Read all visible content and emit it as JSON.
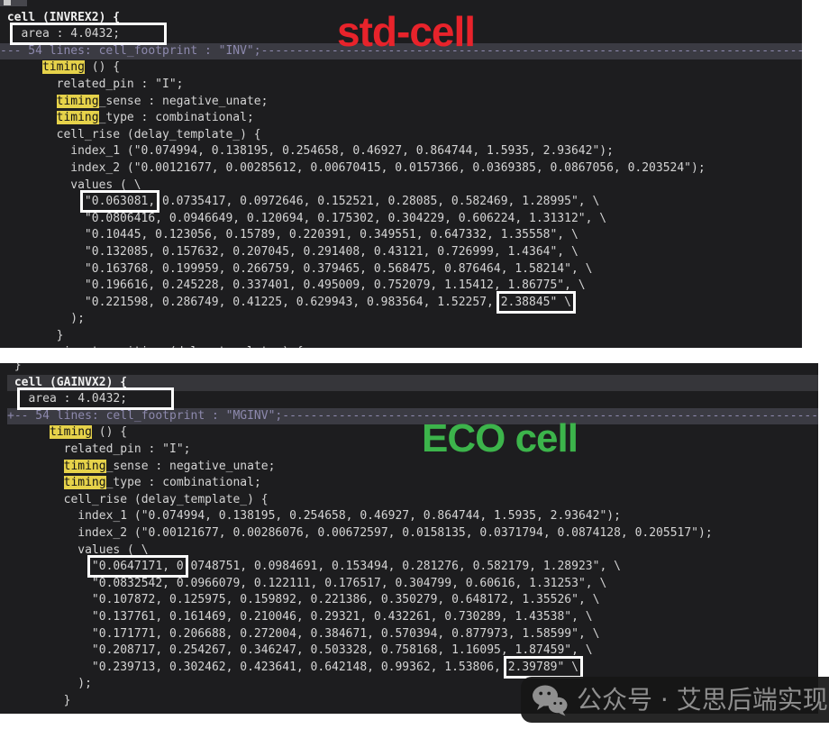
{
  "annotations": {
    "std_cell": {
      "label": "std-cell",
      "color": "#e8232b"
    },
    "eco_cell": {
      "label": "ECO cell",
      "color": "#3cb44b"
    }
  },
  "watermark": {
    "icon": "wechat-logo",
    "text": "公众号 · 艾思后端实现"
  },
  "panels": [
    {
      "name": "std-cell-liberty-view",
      "cell": "INVREX2",
      "lines": [
        {
          "segs": [
            [
              "p",
              " }"
            ]
          ]
        },
        {
          "segs": [
            [
              "b",
              " cell (INVREX2) {"
            ]
          ]
        },
        {
          "segs": [
            [
              "p",
              "  "
            ],
            [
              "x",
              " area : 4.0432;      "
            ]
          ]
        },
        {
          "hl": "fold",
          "segs": [
            [
              "p",
              "--- 54 lines: cell_footprint : \"INV\";----------------------------------------------------------------------------------------"
            ]
          ]
        },
        {
          "segs": [
            [
              "p",
              "      "
            ],
            [
              "y",
              "timing"
            ],
            [
              "p",
              " () {"
            ]
          ]
        },
        {
          "segs": [
            [
              "p",
              "        related_pin : \"I\";"
            ]
          ]
        },
        {
          "segs": [
            [
              "p",
              "        "
            ],
            [
              "y",
              "timing"
            ],
            [
              "p",
              "_sense : negative_unate;"
            ]
          ]
        },
        {
          "segs": [
            [
              "p",
              "        "
            ],
            [
              "y",
              "timing"
            ],
            [
              "p",
              "_type : combinational;"
            ]
          ]
        },
        {
          "segs": [
            [
              "p",
              "        cell_rise (delay_template_) {"
            ]
          ]
        },
        {
          "segs": [
            [
              "p",
              "          index_1 (\"0.074994, 0.138195, 0.254658, 0.46927, 0.864744, 1.5935, 2.93642\");"
            ]
          ]
        },
        {
          "segs": [
            [
              "p",
              "          index_2 (\"0.00121677, 0.00285612, 0.00670415, 0.0157366, 0.0369385, 0.0867056, 0.203524\");"
            ]
          ]
        },
        {
          "segs": [
            [
              "p",
              "          values ( \\"
            ]
          ]
        },
        {
          "segs": [
            [
              "p",
              "            "
            ],
            [
              "x",
              "\"0.063081,"
            ],
            [
              "p",
              " 0.0735417, 0.0972646, 0.152521, 0.28085, 0.582469, 1.28995\", \\"
            ]
          ]
        },
        {
          "segs": [
            [
              "p",
              "            \"0.0806416, 0.0946649, 0.120694, 0.175302, 0.304229, 0.606224, 1.31312\", \\"
            ]
          ]
        },
        {
          "segs": [
            [
              "p",
              "            \"0.10445, 0.123056, 0.15789, 0.220391, 0.349551, 0.647332, 1.35558\", \\"
            ]
          ]
        },
        {
          "segs": [
            [
              "p",
              "            \"0.132085, 0.157632, 0.207045, 0.291408, 0.43121, 0.726999, 1.4364\", \\"
            ]
          ]
        },
        {
          "segs": [
            [
              "p",
              "            \"0.163768, 0.199959, 0.266759, 0.379465, 0.568475, 0.876464, 1.58214\", \\"
            ]
          ]
        },
        {
          "segs": [
            [
              "p",
              "            \"0.196616, 0.245228, 0.337401, 0.495009, 0.752079, 1.15412, 1.86775\", \\"
            ]
          ]
        },
        {
          "segs": [
            [
              "p",
              "            \"0.221598, 0.286749, 0.41225, 0.629943, 0.983564, 1.52257, "
            ],
            [
              "x",
              "2.38845\" \\"
            ]
          ]
        },
        {
          "segs": [
            [
              "p",
              "          );"
            ]
          ]
        },
        {
          "segs": [
            [
              "p",
              "        }"
            ]
          ]
        },
        {
          "segs": [
            [
              "p",
              "        rise_transition (delay_template_) {"
            ]
          ]
        }
      ]
    },
    {
      "name": "eco-cell-liberty-view",
      "cell": "GAINVX2",
      "lines": [
        {
          "segs": [
            [
              "p",
              " }"
            ]
          ]
        },
        {
          "hl": "cursor",
          "segs": [
            [
              "b",
              " cell (GAINVX2) {"
            ]
          ]
        },
        {
          "segs": [
            [
              "p",
              "  "
            ],
            [
              "x",
              " area : 4.0432;      "
            ]
          ]
        },
        {
          "hl": "fold",
          "segs": [
            [
              "p",
              "+-- 54 lines: cell_footprint : \"MGINV\";--------------------------------------------------------------------------------------"
            ]
          ]
        },
        {
          "segs": [
            [
              "p",
              "      "
            ],
            [
              "y",
              "timing"
            ],
            [
              "p",
              " () {"
            ]
          ]
        },
        {
          "segs": [
            [
              "p",
              "        related_pin : \"I\";"
            ]
          ]
        },
        {
          "segs": [
            [
              "p",
              "        "
            ],
            [
              "y",
              "timing"
            ],
            [
              "p",
              "_sense : negative_unate;"
            ]
          ]
        },
        {
          "segs": [
            [
              "p",
              "        "
            ],
            [
              "y",
              "timing"
            ],
            [
              "p",
              "_type : combinational;"
            ]
          ]
        },
        {
          "segs": [
            [
              "p",
              "        cell_rise (delay_template_) {"
            ]
          ]
        },
        {
          "segs": [
            [
              "p",
              "          index_1 (\"0.074994, 0.138195, 0.254658, 0.46927, 0.864744, 1.5935, 2.93642\");"
            ]
          ]
        },
        {
          "segs": [
            [
              "p",
              "          index_2 (\"0.00121677, 0.00286076, 0.00672597, 0.0158135, 0.0371794, 0.0874128, 0.205517\");"
            ]
          ]
        },
        {
          "segs": [
            [
              "p",
              "          values ( \\"
            ]
          ]
        },
        {
          "segs": [
            [
              "p",
              "            "
            ],
            [
              "x",
              "\"0.0647171, 0"
            ],
            [
              "p",
              ".0748751, 0.0984691, 0.153494, 0.281276, 0.582179, 1.28923\", \\"
            ]
          ]
        },
        {
          "segs": [
            [
              "p",
              "            \"0.0832542, 0.0966079, 0.122111, 0.176517, 0.304799, 0.60616, 1.31253\", \\"
            ]
          ]
        },
        {
          "segs": [
            [
              "p",
              "            \"0.107872, 0.125975, 0.159892, 0.221386, 0.350279, 0.648172, 1.35526\", \\"
            ]
          ]
        },
        {
          "segs": [
            [
              "p",
              "            \"0.137761, 0.161469, 0.210046, 0.29321, 0.432261, 0.730289, 1.43538\", \\"
            ]
          ]
        },
        {
          "segs": [
            [
              "p",
              "            \"0.171771, 0.206688, 0.272004, 0.384671, 0.570394, 0.877973, 1.58599\", \\"
            ]
          ]
        },
        {
          "segs": [
            [
              "p",
              "            \"0.208717, 0.254267, 0.346247, 0.503328, 0.758168, 1.16095, 1.87459\", \\"
            ]
          ]
        },
        {
          "segs": [
            [
              "p",
              "            \"0.239713, 0.302462, 0.423641, 0.642148, 0.99362, 1.53806, "
            ],
            [
              "x",
              "2.39789\" \\"
            ]
          ]
        },
        {
          "segs": [
            [
              "p",
              "          );"
            ]
          ]
        },
        {
          "segs": [
            [
              "p",
              "        }"
            ]
          ]
        }
      ]
    }
  ]
}
